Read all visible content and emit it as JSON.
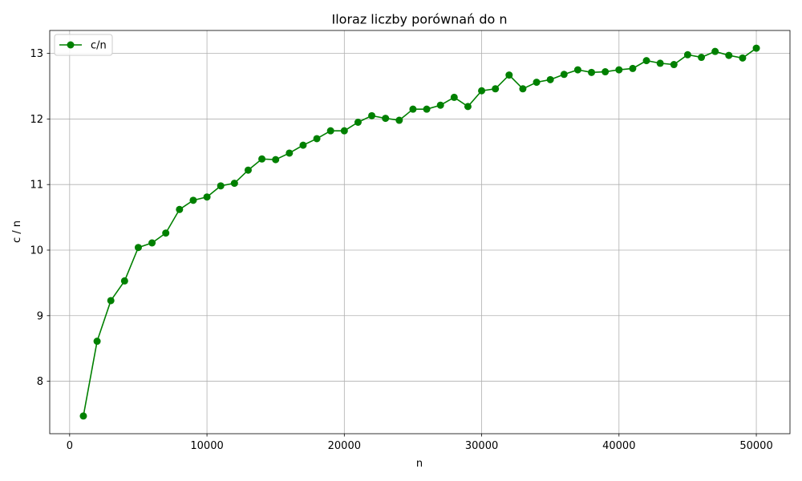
{
  "chart_data": {
    "type": "line",
    "title": "Iloraz liczby porównań do n",
    "xlabel": "n",
    "ylabel": "c / n",
    "xlim": [
      -1450,
      52450
    ],
    "ylim": [
      7.2,
      13.35
    ],
    "xticks": [
      0,
      10000,
      20000,
      30000,
      40000,
      50000
    ],
    "yticks": [
      8,
      9,
      10,
      11,
      12,
      13
    ],
    "grid": true,
    "legend_position": "top-left",
    "colors": {
      "series": "#008000",
      "grid": "#b0b0b0",
      "axes": "#000000"
    },
    "marker": "circle",
    "series": [
      {
        "name": "c/n",
        "x": [
          1000,
          2000,
          3000,
          4000,
          5000,
          6000,
          7000,
          8000,
          9000,
          10000,
          11000,
          12000,
          13000,
          14000,
          15000,
          16000,
          17000,
          18000,
          19000,
          20000,
          21000,
          22000,
          23000,
          24000,
          25000,
          26000,
          27000,
          28000,
          29000,
          30000,
          31000,
          32000,
          33000,
          34000,
          35000,
          36000,
          37000,
          38000,
          39000,
          40000,
          41000,
          42000,
          43000,
          44000,
          45000,
          46000,
          47000,
          48000,
          49000,
          50000
        ],
        "y": [
          7.47,
          8.61,
          9.23,
          9.53,
          10.04,
          10.11,
          10.26,
          10.62,
          10.76,
          10.81,
          10.98,
          11.02,
          11.22,
          11.39,
          11.38,
          11.48,
          11.6,
          11.7,
          11.82,
          11.82,
          11.95,
          12.05,
          12.01,
          11.98,
          12.15,
          12.15,
          12.21,
          12.33,
          12.19,
          12.43,
          12.46,
          12.67,
          12.46,
          12.56,
          12.6,
          12.68,
          12.75,
          12.71,
          12.72,
          12.75,
          12.77,
          12.89,
          12.85,
          12.83,
          12.98,
          12.94,
          13.03,
          12.97,
          12.93,
          13.08
        ]
      }
    ]
  }
}
